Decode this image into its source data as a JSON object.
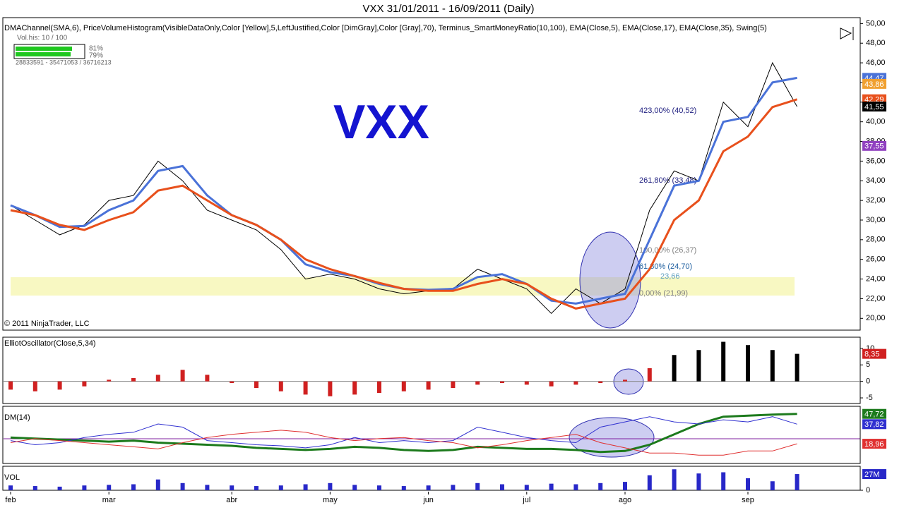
{
  "chart_data": [
    {
      "type": "line",
      "title": "VXX  31/01/2011 - 16/09/2011 (Daily)",
      "subtitle": "DMAChannel(SMA,6), PriceVolumeHistogram(VisibleDataOnly,Color [Yellow],5,LeftJustified,Color [DimGray],Color [Gray],70), Terminus_SmartMoneyRatio(10,100), EMA(Close,5), EMA(Close,17), EMA(Close,35), Swing(5)",
      "watermark": "VXX",
      "copyright": "© 2011 NinjaTrader, LLC",
      "vol_his": {
        "title": "Vol.his: 10 / 100",
        "p1": "81%",
        "p2": "79%",
        "counts": "28833591  -  35471053 / 36716213"
      },
      "annotations": [
        "423,00% (40,52)",
        "261,80% (33,48)",
        "100,00% (26,37)",
        "61,80% (24,70)",
        "23,66",
        "0,00% (21,99)"
      ],
      "ylim": [
        18.8,
        50.6
      ],
      "yticks": [
        {
          "value": 20,
          "label": "20,00"
        },
        {
          "value": 22,
          "label": "22,00"
        },
        {
          "value": 24,
          "label": "24,00"
        },
        {
          "value": 26,
          "label": "26,00"
        },
        {
          "value": 28,
          "label": "28,00"
        },
        {
          "value": 30,
          "label": "30,00"
        },
        {
          "value": 32,
          "label": "32,00"
        },
        {
          "value": 34,
          "label": "34,00"
        },
        {
          "value": 36,
          "label": "36,00"
        },
        {
          "value": 38,
          "label": "38,00"
        },
        {
          "value": 40,
          "label": "40,00"
        },
        {
          "value": 42,
          "label": "42,00"
        },
        {
          "value": 44,
          "label": "44,00"
        },
        {
          "value": 46,
          "label": "46,00"
        },
        {
          "value": 48,
          "label": "48,00"
        },
        {
          "value": 50,
          "label": "50,00"
        }
      ],
      "series": [
        {
          "color": "#000000",
          "width": 1,
          "values": [
            31.5,
            30,
            28.5,
            29.5,
            32,
            32.5,
            36,
            34,
            31,
            30,
            29,
            27,
            24,
            24.5,
            24,
            23,
            22.5,
            22.8,
            23,
            25,
            24,
            23,
            20.5,
            23,
            21.5,
            23,
            31,
            35,
            34,
            42,
            39.5,
            46,
            41.55
          ]
        },
        {
          "color": "#4a72d8",
          "width": 3,
          "values": [
            31.5,
            30.5,
            29.3,
            29.4,
            31,
            32,
            35,
            35.5,
            32.5,
            30.5,
            29.5,
            28,
            25.5,
            24.7,
            24.3,
            23.5,
            23,
            22.9,
            23,
            24.2,
            24.5,
            23.5,
            21.8,
            21.5,
            22,
            22.5,
            28,
            33.5,
            34,
            40,
            40.5,
            44,
            44.47
          ]
        },
        {
          "color": "#e8501c",
          "width": 3,
          "values": [
            31,
            30.5,
            29.5,
            29,
            30,
            30.8,
            33,
            33.5,
            32,
            30.5,
            29.5,
            28,
            26,
            25,
            24.3,
            23.6,
            23,
            22.8,
            22.8,
            23.5,
            24,
            23.5,
            22,
            21,
            21.5,
            22,
            25,
            30,
            32,
            37,
            38.5,
            41.5,
            42.29
          ]
        }
      ],
      "tags": [
        {
          "value": 44.47,
          "label": "44,47",
          "color": "#4a72d8"
        },
        {
          "value": 43.86,
          "label": "43,86",
          "color": "#f0a030"
        },
        {
          "value": 42.29,
          "label": "42,29",
          "color": "#e8501c"
        },
        {
          "value": 41.55,
          "label": "41,55",
          "color": "#000000"
        },
        {
          "value": 37.55,
          "label": "37,55",
          "color": "#9040c0"
        }
      ]
    },
    {
      "type": "bar",
      "title": "ElliotOscillator(Close,5,34)",
      "ylim": [
        -6.7,
        13.4
      ],
      "yticks": [
        -5,
        0,
        5,
        10
      ],
      "values": [
        -2.5,
        -3,
        -2.5,
        -1.5,
        0.5,
        1,
        2,
        3.5,
        2,
        -0.5,
        -2,
        -3,
        -4,
        -4.5,
        -4,
        -3.5,
        -3,
        -2.5,
        -2,
        -1,
        -0.5,
        -1,
        -1.5,
        -1,
        -0.5,
        0.5,
        4,
        8,
        9.5,
        12,
        11,
        9.5,
        8.35
      ],
      "colors": [
        "#d02020",
        "#d02020",
        "#d02020",
        "#d02020",
        "#d02020",
        "#d02020",
        "#d02020",
        "#d02020",
        "#d02020",
        "#d02020",
        "#d02020",
        "#d02020",
        "#d02020",
        "#d02020",
        "#d02020",
        "#d02020",
        "#d02020",
        "#d02020",
        "#d02020",
        "#d02020",
        "#d02020",
        "#d02020",
        "#d02020",
        "#d02020",
        "#d02020",
        "#d02020",
        "#d02020",
        "#000000",
        "#000000",
        "#000000",
        "#000000",
        "#000000",
        "#000000"
      ],
      "tags": [
        {
          "value": 8.35,
          "label": "8,35",
          "color": "#d02020"
        }
      ]
    },
    {
      "type": "line",
      "title": "DM(14)",
      "ylim": [
        0,
        55
      ],
      "series": [
        {
          "color": "#1c7a1c",
          "width": 3,
          "values": [
            25,
            24,
            23,
            22,
            21,
            22,
            20,
            19,
            18,
            17,
            15,
            14,
            13,
            14,
            16,
            15,
            13,
            12,
            13,
            16,
            15,
            14,
            14,
            13,
            11,
            12,
            18,
            28,
            38,
            45,
            46,
            47,
            47.72
          ]
        },
        {
          "color": "#3030d0",
          "width": 1,
          "values": [
            22,
            18,
            20,
            25,
            28,
            30,
            38,
            35,
            22,
            20,
            18,
            17,
            15,
            18,
            25,
            20,
            22,
            20,
            22,
            35,
            30,
            25,
            22,
            20,
            35,
            40,
            45,
            40,
            38,
            42,
            40,
            45,
            37.82
          ]
        },
        {
          "color": "#e03030",
          "width": 1,
          "values": [
            20,
            24,
            22,
            20,
            18,
            16,
            14,
            20,
            25,
            28,
            30,
            32,
            30,
            25,
            22,
            24,
            25,
            22,
            20,
            15,
            18,
            22,
            25,
            28,
            20,
            15,
            10,
            10,
            8,
            8,
            12,
            12,
            18.96
          ]
        }
      ],
      "tags": [
        {
          "value": 47.72,
          "label": "47,72",
          "color": "#1c7a1c"
        },
        {
          "value": 37.82,
          "label": "37,82",
          "color": "#3030d0"
        },
        {
          "value": 18.96,
          "label": "18,96",
          "color": "#e03030"
        }
      ]
    },
    {
      "type": "bar",
      "title": "VOL",
      "ylim": [
        0,
        40
      ],
      "yticks": [
        0
      ],
      "color": "#2828c8",
      "categories": [
        "feb",
        null,
        null,
        null,
        "mar",
        null,
        null,
        null,
        null,
        "abr",
        null,
        null,
        null,
        "may",
        null,
        null,
        null,
        "jun",
        null,
        null,
        null,
        "jul",
        null,
        null,
        null,
        "ago",
        null,
        null,
        null,
        null,
        "sep",
        null,
        null
      ],
      "values": [
        8,
        7,
        6,
        8,
        9,
        10,
        18,
        12,
        9,
        8,
        7,
        8,
        10,
        12,
        9,
        8,
        7,
        8,
        9,
        12,
        10,
        9,
        11,
        10,
        12,
        14,
        25,
        35,
        28,
        30,
        20,
        15,
        27
      ],
      "tags": [
        {
          "value": 27,
          "label": "27M",
          "color": "#2828c8"
        }
      ]
    }
  ]
}
